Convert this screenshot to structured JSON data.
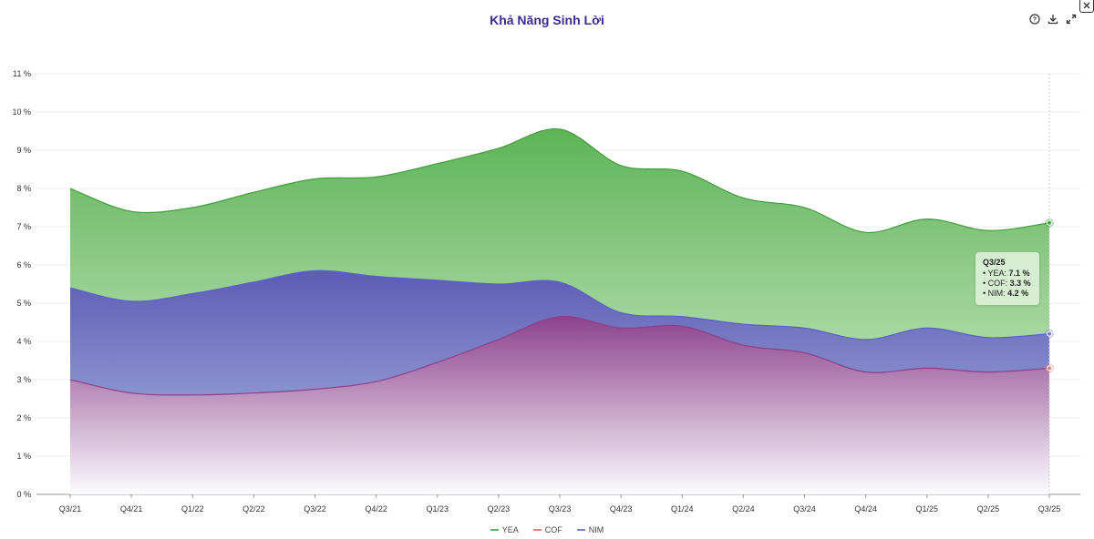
{
  "title": "Khả Năng Sinh Lời",
  "toolbar": {
    "icons": [
      "help-icon",
      "download-icon",
      "fullscreen-icon",
      "close-icon"
    ]
  },
  "chart_data": {
    "type": "area",
    "categories": [
      "Q3/21",
      "Q4/21",
      "Q1/22",
      "Q2/22",
      "Q3/22",
      "Q4/22",
      "Q1/23",
      "Q2/23",
      "Q3/23",
      "Q4/23",
      "Q1/24",
      "Q2/24",
      "Q3/24",
      "Q4/24",
      "Q1/25",
      "Q2/25",
      "Q3/25"
    ],
    "series": [
      {
        "name": "YEA",
        "color": "#5cb85c",
        "values": [
          8.0,
          7.4,
          7.5,
          7.9,
          8.25,
          8.3,
          8.65,
          9.05,
          9.55,
          8.6,
          8.45,
          7.75,
          7.5,
          6.85,
          7.2,
          6.9,
          7.1
        ]
      },
      {
        "name": "COF",
        "color": "#e88080",
        "values": [
          3.0,
          2.65,
          2.6,
          2.65,
          2.75,
          2.95,
          3.45,
          4.05,
          4.65,
          4.35,
          4.4,
          3.9,
          3.7,
          3.2,
          3.3,
          3.2,
          3.3
        ]
      },
      {
        "name": "NIM",
        "color": "#7b7fd4",
        "values": [
          5.4,
          5.05,
          5.25,
          5.55,
          5.85,
          5.7,
          5.6,
          5.5,
          5.55,
          4.75,
          4.65,
          4.45,
          4.35,
          4.05,
          4.35,
          4.1,
          4.2
        ]
      }
    ],
    "ylim": [
      0,
      11
    ],
    "yticks": [
      0,
      1,
      2,
      3,
      4,
      5,
      6,
      7,
      8,
      9,
      10,
      11
    ],
    "ytick_suffix": " %",
    "grid": true,
    "legend_position": "bottom-center"
  },
  "tooltip": {
    "title": "Q3/25",
    "rows": [
      {
        "label": "YEA:",
        "value": "7.1 %"
      },
      {
        "label": "COF:",
        "value": "3.3 %"
      },
      {
        "label": "NIM:",
        "value": "4.2 %"
      }
    ]
  },
  "legend": {
    "items": [
      {
        "label": "YEA",
        "color": "#5cb85c"
      },
      {
        "label": "COF",
        "color": "#e88080"
      },
      {
        "label": "NIM",
        "color": "#7b7fd4"
      }
    ]
  }
}
